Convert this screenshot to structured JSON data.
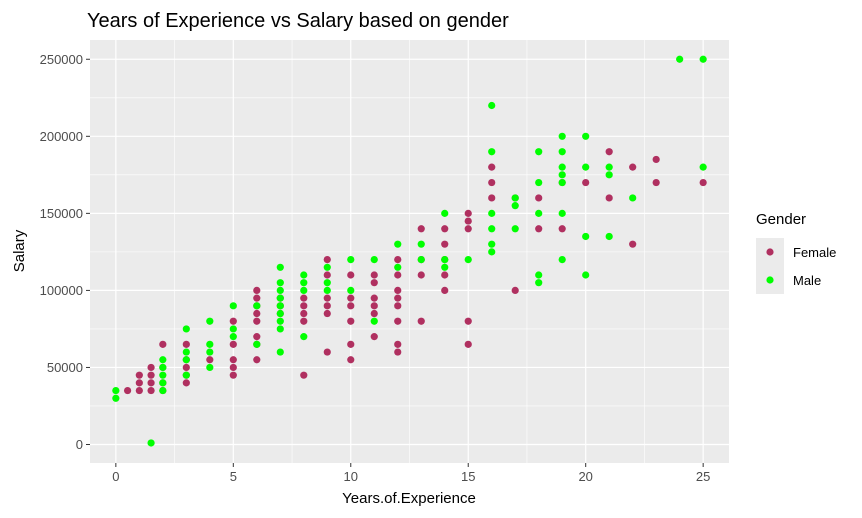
{
  "chart_data": {
    "type": "scatter",
    "title": "Years of Experience vs Salary based on gender",
    "xlabel": "Years.of.Experience",
    "ylabel": "Salary",
    "xlim": [
      -1.1,
      26.1
    ],
    "ylim": [
      -12000,
      262500
    ],
    "x_ticks": [
      0,
      5,
      10,
      15,
      20,
      25
    ],
    "y_ticks": [
      0,
      50000,
      100000,
      150000,
      200000,
      250000
    ],
    "x_tick_labels": [
      "0",
      "5",
      "10",
      "15",
      "20",
      "25"
    ],
    "y_tick_labels": [
      "0",
      "50000",
      "100000",
      "150000",
      "200000",
      "250000"
    ],
    "grid": true,
    "legend": {
      "title": "Gender",
      "position": "right"
    },
    "series": [
      {
        "name": "Female",
        "color": "#b03060",
        "points": [
          [
            0.5,
            35000
          ],
          [
            1,
            35000
          ],
          [
            1,
            40000
          ],
          [
            1,
            45000
          ],
          [
            1.5,
            35000
          ],
          [
            1.5,
            40000
          ],
          [
            1.5,
            45000
          ],
          [
            1.5,
            50000
          ],
          [
            2,
            35000
          ],
          [
            2,
            40000
          ],
          [
            2,
            50000
          ],
          [
            2,
            65000
          ],
          [
            3,
            40000
          ],
          [
            3,
            45000
          ],
          [
            3,
            50000
          ],
          [
            3,
            55000
          ],
          [
            3,
            65000
          ],
          [
            4,
            55000
          ],
          [
            5,
            45000
          ],
          [
            5,
            50000
          ],
          [
            5,
            55000
          ],
          [
            5,
            65000
          ],
          [
            5,
            80000
          ],
          [
            6,
            55000
          ],
          [
            6,
            65000
          ],
          [
            6,
            70000
          ],
          [
            6,
            80000
          ],
          [
            6,
            85000
          ],
          [
            6,
            90000
          ],
          [
            6,
            95000
          ],
          [
            6,
            100000
          ],
          [
            7,
            85000
          ],
          [
            7,
            90000
          ],
          [
            7,
            95000
          ],
          [
            8,
            45000
          ],
          [
            8,
            80000
          ],
          [
            8,
            85000
          ],
          [
            8,
            90000
          ],
          [
            8,
            95000
          ],
          [
            9,
            60000
          ],
          [
            9,
            85000
          ],
          [
            9,
            90000
          ],
          [
            9,
            95000
          ],
          [
            9,
            110000
          ],
          [
            9,
            120000
          ],
          [
            10,
            55000
          ],
          [
            10,
            65000
          ],
          [
            10,
            80000
          ],
          [
            10,
            90000
          ],
          [
            10,
            95000
          ],
          [
            10,
            110000
          ],
          [
            11,
            70000
          ],
          [
            11,
            85000
          ],
          [
            11,
            90000
          ],
          [
            11,
            95000
          ],
          [
            11,
            105000
          ],
          [
            11,
            110000
          ],
          [
            12,
            60000
          ],
          [
            12,
            65000
          ],
          [
            12,
            80000
          ],
          [
            12,
            90000
          ],
          [
            12,
            95000
          ],
          [
            12,
            100000
          ],
          [
            12,
            110000
          ],
          [
            12,
            120000
          ],
          [
            13,
            80000
          ],
          [
            13,
            110000
          ],
          [
            13,
            120000
          ],
          [
            13,
            140000
          ],
          [
            14,
            100000
          ],
          [
            14,
            110000
          ],
          [
            14,
            120000
          ],
          [
            14,
            130000
          ],
          [
            14,
            140000
          ],
          [
            15,
            65000
          ],
          [
            15,
            80000
          ],
          [
            15,
            140000
          ],
          [
            15,
            145000
          ],
          [
            15,
            150000
          ],
          [
            16,
            160000
          ],
          [
            16,
            170000
          ],
          [
            16,
            180000
          ],
          [
            17,
            100000
          ],
          [
            17,
            160000
          ],
          [
            18,
            140000
          ],
          [
            18,
            160000
          ],
          [
            19,
            140000
          ],
          [
            19,
            170000
          ],
          [
            20,
            170000
          ],
          [
            21,
            160000
          ],
          [
            21,
            190000
          ],
          [
            22,
            130000
          ],
          [
            22,
            180000
          ],
          [
            23,
            170000
          ],
          [
            23,
            185000
          ],
          [
            25,
            170000
          ]
        ]
      },
      {
        "name": "Male",
        "color": "#00ff00",
        "points": [
          [
            0,
            30000
          ],
          [
            0,
            35000
          ],
          [
            1.5,
            1000
          ],
          [
            2,
            35000
          ],
          [
            2,
            40000
          ],
          [
            2,
            45000
          ],
          [
            2,
            50000
          ],
          [
            2,
            55000
          ],
          [
            3,
            45000
          ],
          [
            3,
            55000
          ],
          [
            3,
            60000
          ],
          [
            3,
            75000
          ],
          [
            4,
            50000
          ],
          [
            4,
            60000
          ],
          [
            4,
            65000
          ],
          [
            4,
            80000
          ],
          [
            5,
            70000
          ],
          [
            5,
            75000
          ],
          [
            5,
            90000
          ],
          [
            6,
            65000
          ],
          [
            6,
            90000
          ],
          [
            7,
            60000
          ],
          [
            7,
            75000
          ],
          [
            7,
            80000
          ],
          [
            7,
            85000
          ],
          [
            7,
            90000
          ],
          [
            7,
            95000
          ],
          [
            7,
            100000
          ],
          [
            7,
            105000
          ],
          [
            7,
            115000
          ],
          [
            8,
            70000
          ],
          [
            8,
            100000
          ],
          [
            8,
            105000
          ],
          [
            8,
            110000
          ],
          [
            9,
            100000
          ],
          [
            9,
            105000
          ],
          [
            9,
            115000
          ],
          [
            10,
            100000
          ],
          [
            10,
            120000
          ],
          [
            11,
            80000
          ],
          [
            11,
            120000
          ],
          [
            12,
            115000
          ],
          [
            12,
            130000
          ],
          [
            13,
            120000
          ],
          [
            13,
            130000
          ],
          [
            14,
            115000
          ],
          [
            14,
            120000
          ],
          [
            14,
            150000
          ],
          [
            15,
            120000
          ],
          [
            16,
            125000
          ],
          [
            16,
            130000
          ],
          [
            16,
            140000
          ],
          [
            16,
            150000
          ],
          [
            16,
            190000
          ],
          [
            16,
            220000
          ],
          [
            17,
            140000
          ],
          [
            17,
            155000
          ],
          [
            17,
            160000
          ],
          [
            18,
            105000
          ],
          [
            18,
            110000
          ],
          [
            18,
            150000
          ],
          [
            18,
            170000
          ],
          [
            18,
            190000
          ],
          [
            19,
            120000
          ],
          [
            19,
            150000
          ],
          [
            19,
            170000
          ],
          [
            19,
            175000
          ],
          [
            19,
            180000
          ],
          [
            19,
            190000
          ],
          [
            19,
            200000
          ],
          [
            20,
            110000
          ],
          [
            20,
            135000
          ],
          [
            20,
            180000
          ],
          [
            20,
            200000
          ],
          [
            21,
            135000
          ],
          [
            21,
            175000
          ],
          [
            21,
            180000
          ],
          [
            22,
            160000
          ],
          [
            24,
            250000
          ],
          [
            25,
            180000
          ],
          [
            25,
            250000
          ]
        ]
      }
    ]
  }
}
